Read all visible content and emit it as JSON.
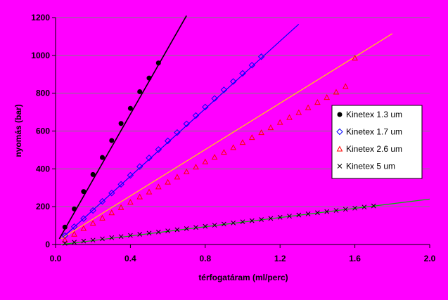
{
  "chart_data": {
    "type": "scatter",
    "title": "",
    "xlabel": "térfogatáram (ml/perc)",
    "ylabel": "nyomás (bar)",
    "xlim": [
      0.0,
      2.0
    ],
    "ylim": [
      0,
      1200
    ],
    "xticks": [
      "0.0",
      "0.4",
      "0.8",
      "1.2",
      "1.6",
      "2.0"
    ],
    "yticks": [
      "0",
      "200",
      "400",
      "600",
      "800",
      "1000",
      "1200"
    ],
    "grid": "horizontal",
    "legend_position": "right",
    "colors": {
      "background": "#ff00ff",
      "gridline": "#808080"
    },
    "series": [
      {
        "name": "Kinetex 1.3 um",
        "marker": "filled-circle",
        "color": "#000000",
        "points": [
          [
            0.05,
            92
          ],
          [
            0.1,
            188
          ],
          [
            0.15,
            280
          ],
          [
            0.2,
            370
          ],
          [
            0.25,
            460
          ],
          [
            0.3,
            550
          ],
          [
            0.35,
            640
          ],
          [
            0.4,
            720
          ],
          [
            0.45,
            808
          ],
          [
            0.5,
            880
          ],
          [
            0.55,
            960
          ]
        ],
        "fit": [
          [
            0.02,
            30
          ],
          [
            0.7,
            1210
          ]
        ]
      },
      {
        "name": "Kinetex 1.7 um",
        "marker": "open-diamond",
        "color": "#0000ff",
        "points": [
          [
            0.05,
            47
          ],
          [
            0.1,
            94
          ],
          [
            0.15,
            137
          ],
          [
            0.2,
            180
          ],
          [
            0.25,
            228
          ],
          [
            0.3,
            272
          ],
          [
            0.35,
            318
          ],
          [
            0.4,
            366
          ],
          [
            0.45,
            412
          ],
          [
            0.5,
            458
          ],
          [
            0.55,
            502
          ],
          [
            0.6,
            548
          ],
          [
            0.65,
            592
          ],
          [
            0.7,
            638
          ],
          [
            0.75,
            682
          ],
          [
            0.8,
            727
          ],
          [
            0.85,
            772
          ],
          [
            0.9,
            818
          ],
          [
            0.95,
            862
          ],
          [
            1.0,
            905
          ],
          [
            1.05,
            948
          ],
          [
            1.1,
            993
          ]
        ],
        "fit": [
          [
            0.03,
            30
          ],
          [
            1.3,
            1165
          ]
        ]
      },
      {
        "name": "Kinetex 2.6 um",
        "marker": "open-triangle",
        "color": "#ff0000",
        "points": [
          [
            0.05,
            24
          ],
          [
            0.1,
            55
          ],
          [
            0.15,
            85
          ],
          [
            0.2,
            113
          ],
          [
            0.25,
            140
          ],
          [
            0.3,
            168
          ],
          [
            0.35,
            196
          ],
          [
            0.4,
            224
          ],
          [
            0.45,
            252
          ],
          [
            0.5,
            278
          ],
          [
            0.55,
            305
          ],
          [
            0.6,
            330
          ],
          [
            0.65,
            357
          ],
          [
            0.7,
            385
          ],
          [
            0.75,
            410
          ],
          [
            0.8,
            438
          ],
          [
            0.85,
            462
          ],
          [
            0.9,
            488
          ],
          [
            0.95,
            513
          ],
          [
            1.0,
            540
          ],
          [
            1.05,
            566
          ],
          [
            1.1,
            592
          ],
          [
            1.15,
            618
          ],
          [
            1.2,
            646
          ],
          [
            1.25,
            672
          ],
          [
            1.3,
            698
          ],
          [
            1.35,
            724
          ],
          [
            1.4,
            752
          ],
          [
            1.45,
            778
          ],
          [
            1.5,
            806
          ],
          [
            1.55,
            836
          ],
          [
            1.6,
            986
          ]
        ],
        "fit": [
          [
            0.03,
            30
          ],
          [
            1.8,
            1115
          ]
        ]
      },
      {
        "name": "Kinetex 5 um",
        "marker": "cross",
        "color": "#000000",
        "points": [
          [
            0.05,
            6
          ],
          [
            0.1,
            12
          ],
          [
            0.15,
            18
          ],
          [
            0.2,
            23
          ],
          [
            0.25,
            30
          ],
          [
            0.3,
            36
          ],
          [
            0.35,
            42
          ],
          [
            0.4,
            48
          ],
          [
            0.45,
            54
          ],
          [
            0.5,
            60
          ],
          [
            0.55,
            66
          ],
          [
            0.6,
            72
          ],
          [
            0.65,
            78
          ],
          [
            0.7,
            84
          ],
          [
            0.75,
            90
          ],
          [
            0.8,
            96
          ],
          [
            0.85,
            102
          ],
          [
            0.9,
            108
          ],
          [
            0.95,
            114
          ],
          [
            1.0,
            120
          ],
          [
            1.05,
            126
          ],
          [
            1.1,
            132
          ],
          [
            1.15,
            138
          ],
          [
            1.2,
            144
          ],
          [
            1.25,
            150
          ],
          [
            1.3,
            156
          ],
          [
            1.35,
            162
          ],
          [
            1.4,
            168
          ],
          [
            1.45,
            174
          ],
          [
            1.5,
            180
          ],
          [
            1.55,
            186
          ],
          [
            1.6,
            192
          ],
          [
            1.65,
            198
          ],
          [
            1.7,
            204
          ]
        ],
        "fit": [
          [
            0.03,
            0
          ],
          [
            2.0,
            240
          ]
        ]
      }
    ]
  }
}
